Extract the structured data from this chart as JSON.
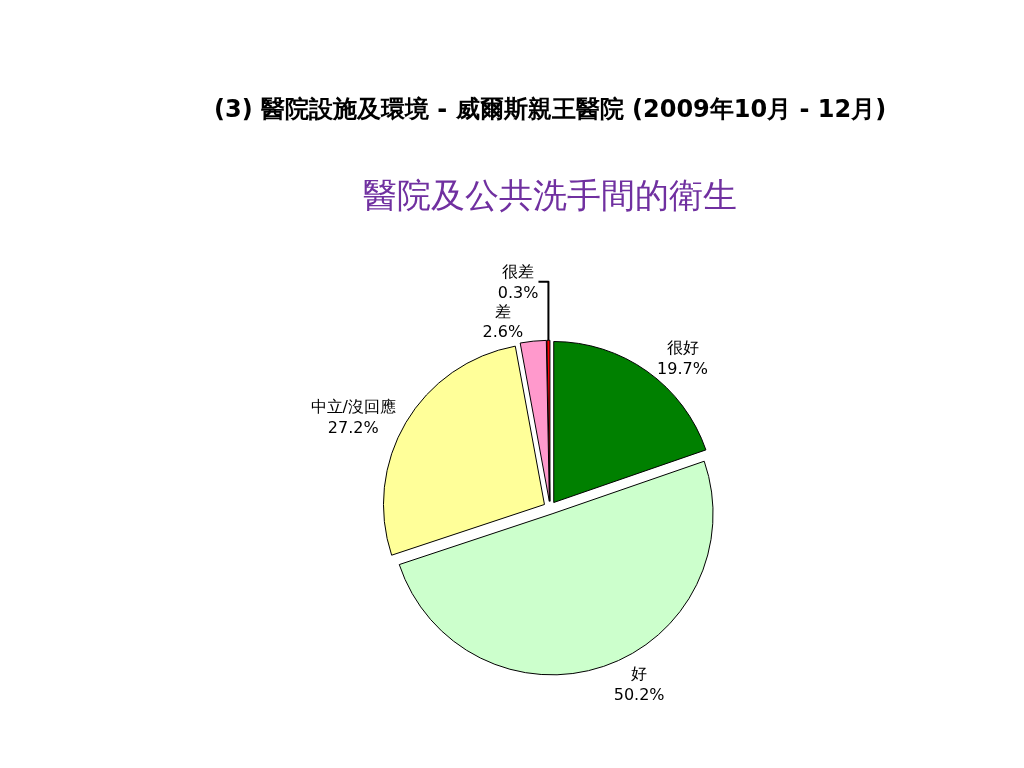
{
  "chart_data": {
    "type": "pie",
    "title": "(3) 醫院設施及環境 - 威爾斯親王醫院 (2009年10月 - 12月)",
    "subtitle": "醫院及公共洗手間的衛生",
    "categories": [
      "很好",
      "好",
      "中立/沒回應",
      "差",
      "很差"
    ],
    "values": [
      19.7,
      50.2,
      27.2,
      2.6,
      0.3
    ],
    "value_labels": [
      "19.7%",
      "50.2%",
      "27.2%",
      "2.6%",
      "0.3%"
    ],
    "colors": [
      "#008000",
      "#ccffcc",
      "#ffff99",
      "#ff99cc",
      "#ff0000"
    ],
    "legend": false
  }
}
